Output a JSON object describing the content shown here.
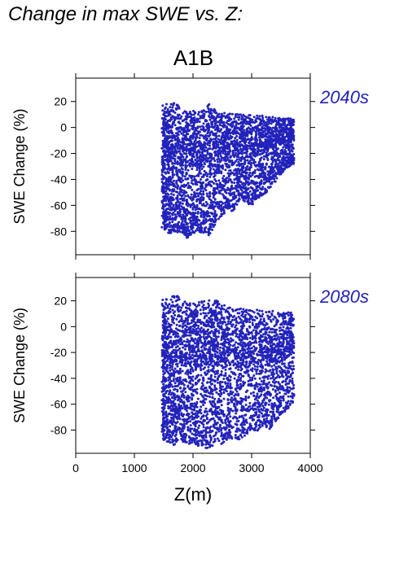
{
  "title": "Change in max SWE vs. Z:",
  "scenario": "A1B",
  "colors": {
    "points": "#2222bb",
    "period_label": "#2222bb",
    "axes": "#000000"
  },
  "chart_data": [
    {
      "type": "scatter",
      "period": "2040s",
      "xlabel": "Z(m)",
      "ylabel": "SWE Change (%)",
      "xlim": [
        0,
        4000
      ],
      "ylim": [
        -98,
        38
      ],
      "xticks": [
        0,
        1000,
        2000,
        3000,
        4000
      ],
      "yticks": [
        20,
        0,
        -20,
        -40,
        -60,
        -80
      ],
      "x_range_of_points": [
        1480,
        3720
      ],
      "profile": [
        [
          1500,
          -78,
          18
        ],
        [
          1600,
          -82,
          19
        ],
        [
          1700,
          -80,
          20
        ],
        [
          1800,
          -82,
          14
        ],
        [
          1900,
          -85,
          12
        ],
        [
          2000,
          -82,
          13
        ],
        [
          2100,
          -80,
          12
        ],
        [
          2200,
          -82,
          14
        ],
        [
          2300,
          -84,
          19
        ],
        [
          2400,
          -72,
          12
        ],
        [
          2500,
          -68,
          12
        ],
        [
          2600,
          -63,
          11
        ],
        [
          2700,
          -65,
          12
        ],
        [
          2800,
          -55,
          10
        ],
        [
          2900,
          -58,
          10
        ],
        [
          3000,
          -60,
          10
        ],
        [
          3100,
          -55,
          9
        ],
        [
          3200,
          -52,
          9
        ],
        [
          3300,
          -48,
          8
        ],
        [
          3400,
          -42,
          8
        ],
        [
          3500,
          -36,
          7
        ],
        [
          3600,
          -32,
          7
        ],
        [
          3700,
          -28,
          7
        ]
      ]
    },
    {
      "type": "scatter",
      "period": "2080s",
      "xlabel": "Z(m)",
      "ylabel": "SWE Change (%)",
      "xlim": [
        0,
        4000
      ],
      "ylim": [
        -98,
        38
      ],
      "xticks": [
        0,
        1000,
        2000,
        3000,
        4000
      ],
      "yticks": [
        20,
        0,
        -20,
        -40,
        -60,
        -80
      ],
      "x_range_of_points": [
        1480,
        3720
      ],
      "profile": [
        [
          1500,
          -88,
          22
        ],
        [
          1600,
          -90,
          21
        ],
        [
          1700,
          -92,
          26
        ],
        [
          1800,
          -90,
          21
        ],
        [
          1900,
          -92,
          19
        ],
        [
          2000,
          -90,
          18
        ],
        [
          2100,
          -93,
          19
        ],
        [
          2200,
          -94,
          21
        ],
        [
          2300,
          -94,
          20
        ],
        [
          2400,
          -88,
          21
        ],
        [
          2500,
          -92,
          18
        ],
        [
          2600,
          -88,
          16
        ],
        [
          2700,
          -86,
          15
        ],
        [
          2800,
          -88,
          14
        ],
        [
          2900,
          -84,
          14
        ],
        [
          3000,
          -80,
          13
        ],
        [
          3100,
          -82,
          13
        ],
        [
          3200,
          -76,
          12
        ],
        [
          3300,
          -80,
          12
        ],
        [
          3400,
          -74,
          12
        ],
        [
          3500,
          -70,
          11
        ],
        [
          3600,
          -64,
          11
        ],
        [
          3700,
          -60,
          11
        ]
      ]
    }
  ]
}
